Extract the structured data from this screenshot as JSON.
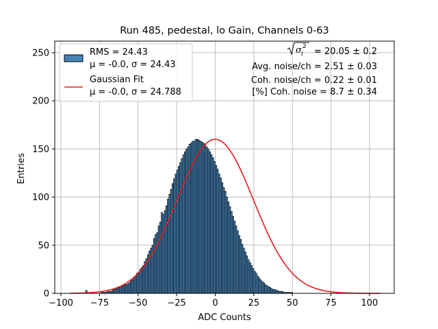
{
  "chart_data": {
    "type": "bar",
    "title": "Run 485, pedestal, lo Gain, Channels 0-63",
    "xlabel": "ADC Counts",
    "ylabel": "Entries",
    "xlim": [
      -104,
      116
    ],
    "ylim": [
      0,
      262
    ],
    "xticks": [
      -100,
      -75,
      -50,
      -25,
      0,
      25,
      50,
      75,
      100
    ],
    "yticks": [
      0,
      50,
      100,
      150,
      200,
      250
    ],
    "grid": true,
    "legend_position": "top-left",
    "bar_color": "#4682b4",
    "fit_color": "#e41a1c",
    "histogram": {
      "bin_start": -94,
      "bin_width": 1,
      "values": [
        0,
        0,
        0,
        0,
        0,
        0,
        0,
        0,
        0,
        0,
        3,
        0,
        0,
        0,
        0,
        0,
        0,
        0,
        0,
        0,
        1,
        1,
        1,
        1,
        2,
        2,
        2,
        3,
        4,
        5,
        5,
        6,
        6,
        7,
        8,
        9,
        9,
        10,
        11,
        13,
        14,
        16,
        18,
        21,
        22,
        25,
        27,
        29,
        33,
        36,
        40,
        44,
        47,
        50,
        57,
        61,
        63,
        70,
        74,
        84,
        82,
        86,
        91,
        98,
        103,
        108,
        114,
        119,
        124,
        128,
        132,
        136,
        140,
        144,
        147,
        150,
        152,
        155,
        156,
        158,
        158,
        160,
        160,
        159,
        158,
        157,
        156,
        154,
        152,
        150,
        147,
        144,
        141,
        137,
        133,
        129,
        124,
        120,
        115,
        110,
        106,
        100,
        95,
        90,
        85,
        80,
        75,
        70,
        65,
        60,
        56,
        51,
        47,
        43,
        39,
        35,
        32,
        29,
        26,
        23,
        21,
        18,
        16,
        14,
        12,
        11,
        9,
        8,
        7,
        6,
        5,
        4,
        4,
        3,
        3,
        2,
        2,
        2,
        1,
        1,
        1,
        1,
        1,
        1,
        0,
        0,
        0,
        0,
        0,
        0,
        0,
        0,
        0,
        0,
        0,
        0,
        0,
        0,
        0,
        0,
        0,
        0,
        0,
        0,
        0,
        0,
        0,
        0,
        0,
        0,
        0,
        0,
        0,
        0,
        0,
        0,
        0,
        0,
        0,
        0,
        0,
        0,
        0,
        0,
        0,
        0,
        0,
        0,
        0,
        0,
        0,
        0,
        0,
        0,
        0,
        0,
        0,
        0,
        0,
        0,
        0,
        0
      ]
    },
    "fit": {
      "mu": 0.0,
      "sigma": 24.788,
      "amplitude": 160,
      "x_range": [
        -94,
        107
      ]
    },
    "legend": [
      {
        "label_line1": "RMS = 24.43",
        "label_line2": "μ = -0.0, σ = 24.43",
        "kind": "patch"
      },
      {
        "label_line1": "Gaussian Fit",
        "label_line2": "μ = -0.0, σ = 24.788",
        "kind": "line"
      }
    ],
    "annotations": {
      "total_noise_value": "= 20.05 ± 0.2",
      "avg_noise": "Avg. noise/ch = 2.51 ± 0.03",
      "coh_noise": "Coh. noise/ch = 0.22 ± 0.01",
      "coh_noise_pct": "[%] Coh. noise = 8.7 ± 0.34"
    }
  }
}
